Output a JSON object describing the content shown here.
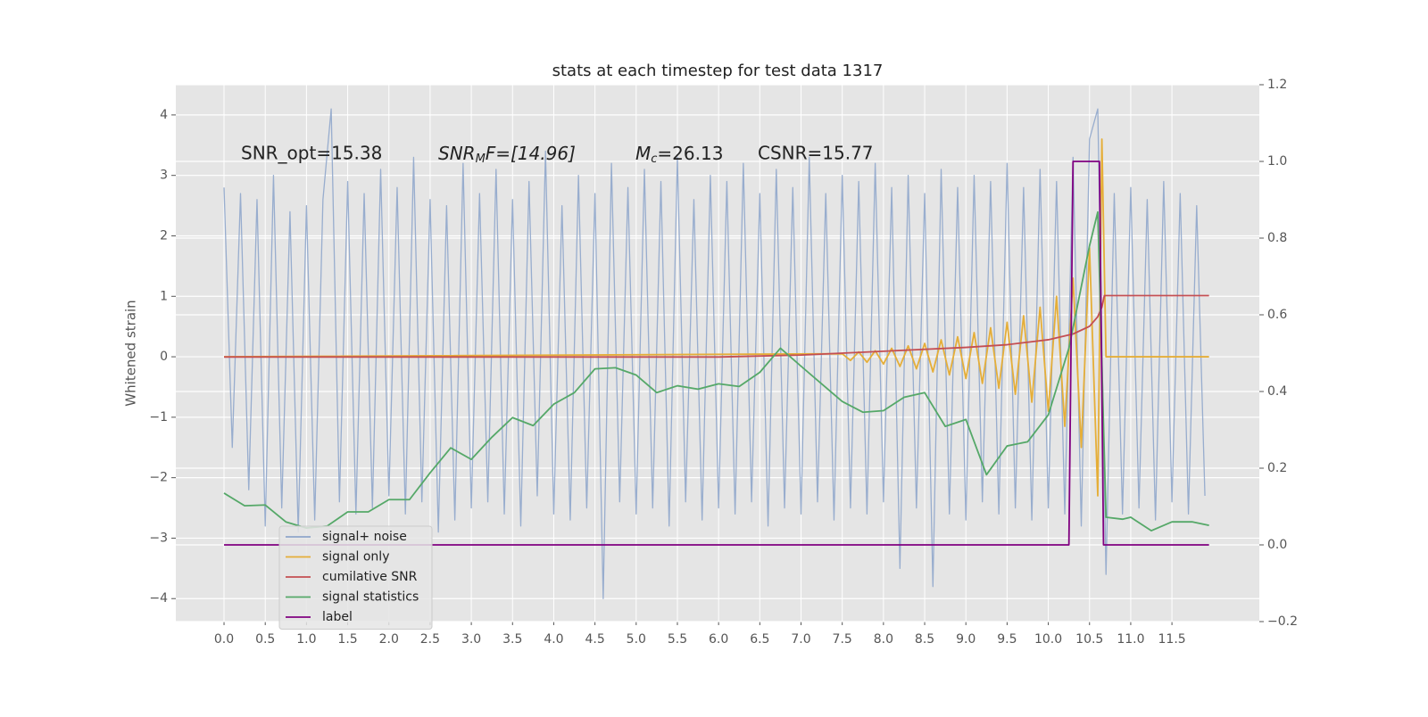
{
  "chart_data": {
    "type": "line",
    "title": "stats at each timestep for test data 1317",
    "ylabel": "Whitened strain",
    "annotations": [
      {
        "text": "SNR_opt=15.38"
      },
      {
        "main": "SNR",
        "sub": "M",
        "tail": "F=[14.96]"
      },
      {
        "main": "M",
        "sub": "c",
        "tail": "=26.13"
      },
      {
        "text": "CSNR=15.77"
      }
    ],
    "xlim": [
      -0.585,
      12.56
    ],
    "ylim": [
      -4.38,
      4.5
    ],
    "y2lim": [
      -0.2,
      1.2
    ],
    "xticks": [
      {
        "value": 0,
        "label": "0.0"
      },
      {
        "value": 0.5,
        "label": "0.5"
      },
      {
        "value": 1,
        "label": "1.0"
      },
      {
        "value": 1.5,
        "label": "1.5"
      },
      {
        "value": 2,
        "label": "2.0"
      },
      {
        "value": 2.5,
        "label": "2.5"
      },
      {
        "value": 3,
        "label": "3.0"
      },
      {
        "value": 3.5,
        "label": "3.5"
      },
      {
        "value": 4,
        "label": "4.0"
      },
      {
        "value": 4.5,
        "label": "4.5"
      },
      {
        "value": 5,
        "label": "5.0"
      },
      {
        "value": 5.5,
        "label": "5.5"
      },
      {
        "value": 6,
        "label": "6.0"
      },
      {
        "value": 6.5,
        "label": "6.5"
      },
      {
        "value": 7,
        "label": "7.0"
      },
      {
        "value": 7.5,
        "label": "7.5"
      },
      {
        "value": 8,
        "label": "8.0"
      },
      {
        "value": 8.5,
        "label": "8.5"
      },
      {
        "value": 9,
        "label": "9.0"
      },
      {
        "value": 9.5,
        "label": "9.5"
      },
      {
        "value": 10,
        "label": "10.0"
      },
      {
        "value": 10.5,
        "label": "10.5"
      },
      {
        "value": 11,
        "label": "11.0"
      },
      {
        "value": 11.5,
        "label": "11.5"
      }
    ],
    "yticks": [
      {
        "value": -4,
        "label": "−4"
      },
      {
        "value": -3,
        "label": "−3"
      },
      {
        "value": -2,
        "label": "−2"
      },
      {
        "value": -1,
        "label": "−1"
      },
      0,
      1,
      2,
      3,
      4
    ],
    "y2ticks": [
      {
        "value": -0.2,
        "label": "−0.2"
      },
      {
        "value": 0,
        "label": "0.0"
      },
      {
        "value": 0.2,
        "label": "0.2"
      },
      {
        "value": 0.4,
        "label": "0.4"
      },
      {
        "value": 0.6,
        "label": "0.6"
      },
      {
        "value": 0.8,
        "label": "0.8"
      },
      {
        "value": 1,
        "label": "1.0"
      },
      {
        "value": 1.2,
        "label": "1.2"
      }
    ],
    "grid": true,
    "legend": "lower left",
    "series": [
      {
        "name": "signal+ noise",
        "color": "#8fa6cb",
        "x": [
          0.0,
          0.1,
          0.2,
          0.3,
          0.4,
          0.5,
          0.6,
          0.7,
          0.8,
          0.9,
          1.0,
          1.1,
          1.2,
          1.3,
          1.4,
          1.5,
          1.6,
          1.7,
          1.8,
          1.9,
          2.0,
          2.1,
          2.2,
          2.3,
          2.4,
          2.5,
          2.6,
          2.7,
          2.8,
          2.9,
          3.0,
          3.1,
          3.2,
          3.3,
          3.4,
          3.5,
          3.6,
          3.7,
          3.8,
          3.9,
          4.0,
          4.1,
          4.2,
          4.3,
          4.4,
          4.5,
          4.6,
          4.7,
          4.8,
          4.9,
          5.0,
          5.1,
          5.2,
          5.3,
          5.4,
          5.5,
          5.6,
          5.7,
          5.8,
          5.9,
          6.0,
          6.1,
          6.2,
          6.3,
          6.4,
          6.5,
          6.6,
          6.7,
          6.8,
          6.9,
          7.0,
          7.1,
          7.2,
          7.3,
          7.4,
          7.5,
          7.6,
          7.7,
          7.8,
          7.9,
          8.0,
          8.1,
          8.2,
          8.3,
          8.4,
          8.5,
          8.6,
          8.7,
          8.8,
          8.9,
          9.0,
          9.1,
          9.2,
          9.3,
          9.4,
          9.5,
          9.6,
          9.7,
          9.8,
          9.9,
          10.0,
          10.1,
          10.2,
          10.3,
          10.4,
          10.5,
          10.6,
          10.7,
          10.8,
          10.9,
          11.0,
          11.1,
          11.2,
          11.3,
          11.4,
          11.5,
          11.6,
          11.7,
          11.8,
          11.9
        ],
        "values": [
          2.8,
          -1.5,
          2.7,
          -2.2,
          2.6,
          -2.8,
          3.0,
          -2.5,
          2.4,
          -2.9,
          2.5,
          -2.7,
          2.6,
          4.1,
          -2.4,
          2.9,
          -2.6,
          2.7,
          -2.5,
          3.1,
          -2.3,
          2.8,
          -2.6,
          3.3,
          -2.4,
          2.6,
          -2.9,
          2.5,
          -2.7,
          3.2,
          -2.5,
          2.7,
          -2.4,
          3.1,
          -2.6,
          2.6,
          -2.8,
          2.9,
          -2.3,
          3.4,
          -2.6,
          2.5,
          -2.7,
          3.0,
          -2.5,
          2.7,
          -4.0,
          3.2,
          -2.4,
          2.8,
          -2.6,
          3.1,
          -2.5,
          2.9,
          -2.8,
          3.3,
          -2.4,
          2.6,
          -2.7,
          3.0,
          -2.5,
          2.9,
          -2.6,
          3.2,
          -2.4,
          2.7,
          -2.8,
          3.1,
          -2.5,
          2.8,
          -2.6,
          3.3,
          -2.4,
          2.7,
          -2.7,
          3.0,
          -2.5,
          2.9,
          -2.6,
          3.2,
          -2.4,
          2.8,
          -3.5,
          3.0,
          -2.5,
          2.7,
          -3.8,
          3.1,
          -2.6,
          2.8,
          -2.7,
          3.0,
          -2.4,
          2.9,
          -2.6,
          3.2,
          -2.5,
          2.8,
          -2.7,
          3.1,
          -2.5,
          2.9,
          -2.6,
          3.3,
          -2.8,
          3.6,
          4.1,
          -3.6,
          2.7,
          -2.6,
          2.8,
          -2.5,
          2.6,
          -2.7,
          2.9,
          -2.4,
          2.7,
          -2.6,
          2.5,
          -2.3
        ]
      },
      {
        "name": "signal only",
        "color": "#e5ae38",
        "x": [
          0,
          7.5,
          7.6,
          7.7,
          7.8,
          7.9,
          8.0,
          8.1,
          8.2,
          8.3,
          8.4,
          8.5,
          8.6,
          8.7,
          8.8,
          8.9,
          9.0,
          9.1,
          9.2,
          9.3,
          9.4,
          9.5,
          9.6,
          9.7,
          9.8,
          9.9,
          10.0,
          10.1,
          10.2,
          10.3,
          10.4,
          10.5,
          10.6,
          10.65,
          10.7,
          11.95
        ],
        "values": [
          0,
          0.05,
          -0.06,
          0.08,
          -0.09,
          0.1,
          -0.12,
          0.14,
          -0.16,
          0.18,
          -0.2,
          0.22,
          -0.25,
          0.28,
          -0.3,
          0.33,
          -0.36,
          0.4,
          -0.44,
          0.48,
          -0.52,
          0.57,
          -0.62,
          0.68,
          -0.75,
          0.82,
          -0.9,
          1.0,
          -1.15,
          1.3,
          -1.5,
          1.8,
          -2.3,
          3.6,
          0,
          0
        ]
      },
      {
        "name": "cumilative SNR",
        "color": "#c44e52",
        "axis": "y2",
        "x": [
          0,
          6.0,
          7.0,
          8.0,
          9.0,
          9.5,
          10.0,
          10.3,
          10.5,
          10.6,
          10.65,
          10.68,
          11.95
        ],
        "values": [
          0.49,
          0.49,
          0.495,
          0.505,
          0.515,
          0.522,
          0.535,
          0.55,
          0.57,
          0.595,
          0.62,
          0.65,
          0.65
        ]
      },
      {
        "name": "signal statistics",
        "color": "#55a868",
        "axis": "y2",
        "x": [
          0,
          0.25,
          0.5,
          0.75,
          1.0,
          1.25,
          1.5,
          1.75,
          2.0,
          2.25,
          2.5,
          2.75,
          3.0,
          3.25,
          3.5,
          3.75,
          4.0,
          4.25,
          4.5,
          4.75,
          5.0,
          5.25,
          5.5,
          5.75,
          6.0,
          6.25,
          6.5,
          6.75,
          7.0,
          7.25,
          7.5,
          7.75,
          8.0,
          8.25,
          8.5,
          8.75,
          9.0,
          9.25,
          9.5,
          9.75,
          10.0,
          10.25,
          10.5,
          10.6,
          10.7,
          10.9,
          11.0,
          11.25,
          11.5,
          11.75,
          11.95
        ],
        "values": [
          0.135,
          0.102,
          0.104,
          0.06,
          0.044,
          0.049,
          0.086,
          0.086,
          0.118,
          0.118,
          0.188,
          0.253,
          0.223,
          0.281,
          0.332,
          0.311,
          0.367,
          0.397,
          0.459,
          0.462,
          0.443,
          0.397,
          0.415,
          0.406,
          0.42,
          0.413,
          0.45,
          0.513,
          0.466,
          0.42,
          0.374,
          0.346,
          0.35,
          0.385,
          0.397,
          0.309,
          0.327,
          0.183,
          0.258,
          0.269,
          0.339,
          0.513,
          0.78,
          0.868,
          0.072,
          0.067,
          0.072,
          0.037,
          0.06,
          0.06,
          0.051
        ]
      },
      {
        "name": "label",
        "color": "#800080",
        "axis": "y2",
        "x": [
          0,
          10.25,
          10.3,
          10.62,
          10.67,
          11.95
        ],
        "values": [
          0,
          0,
          1,
          1,
          0,
          0
        ]
      }
    ]
  }
}
